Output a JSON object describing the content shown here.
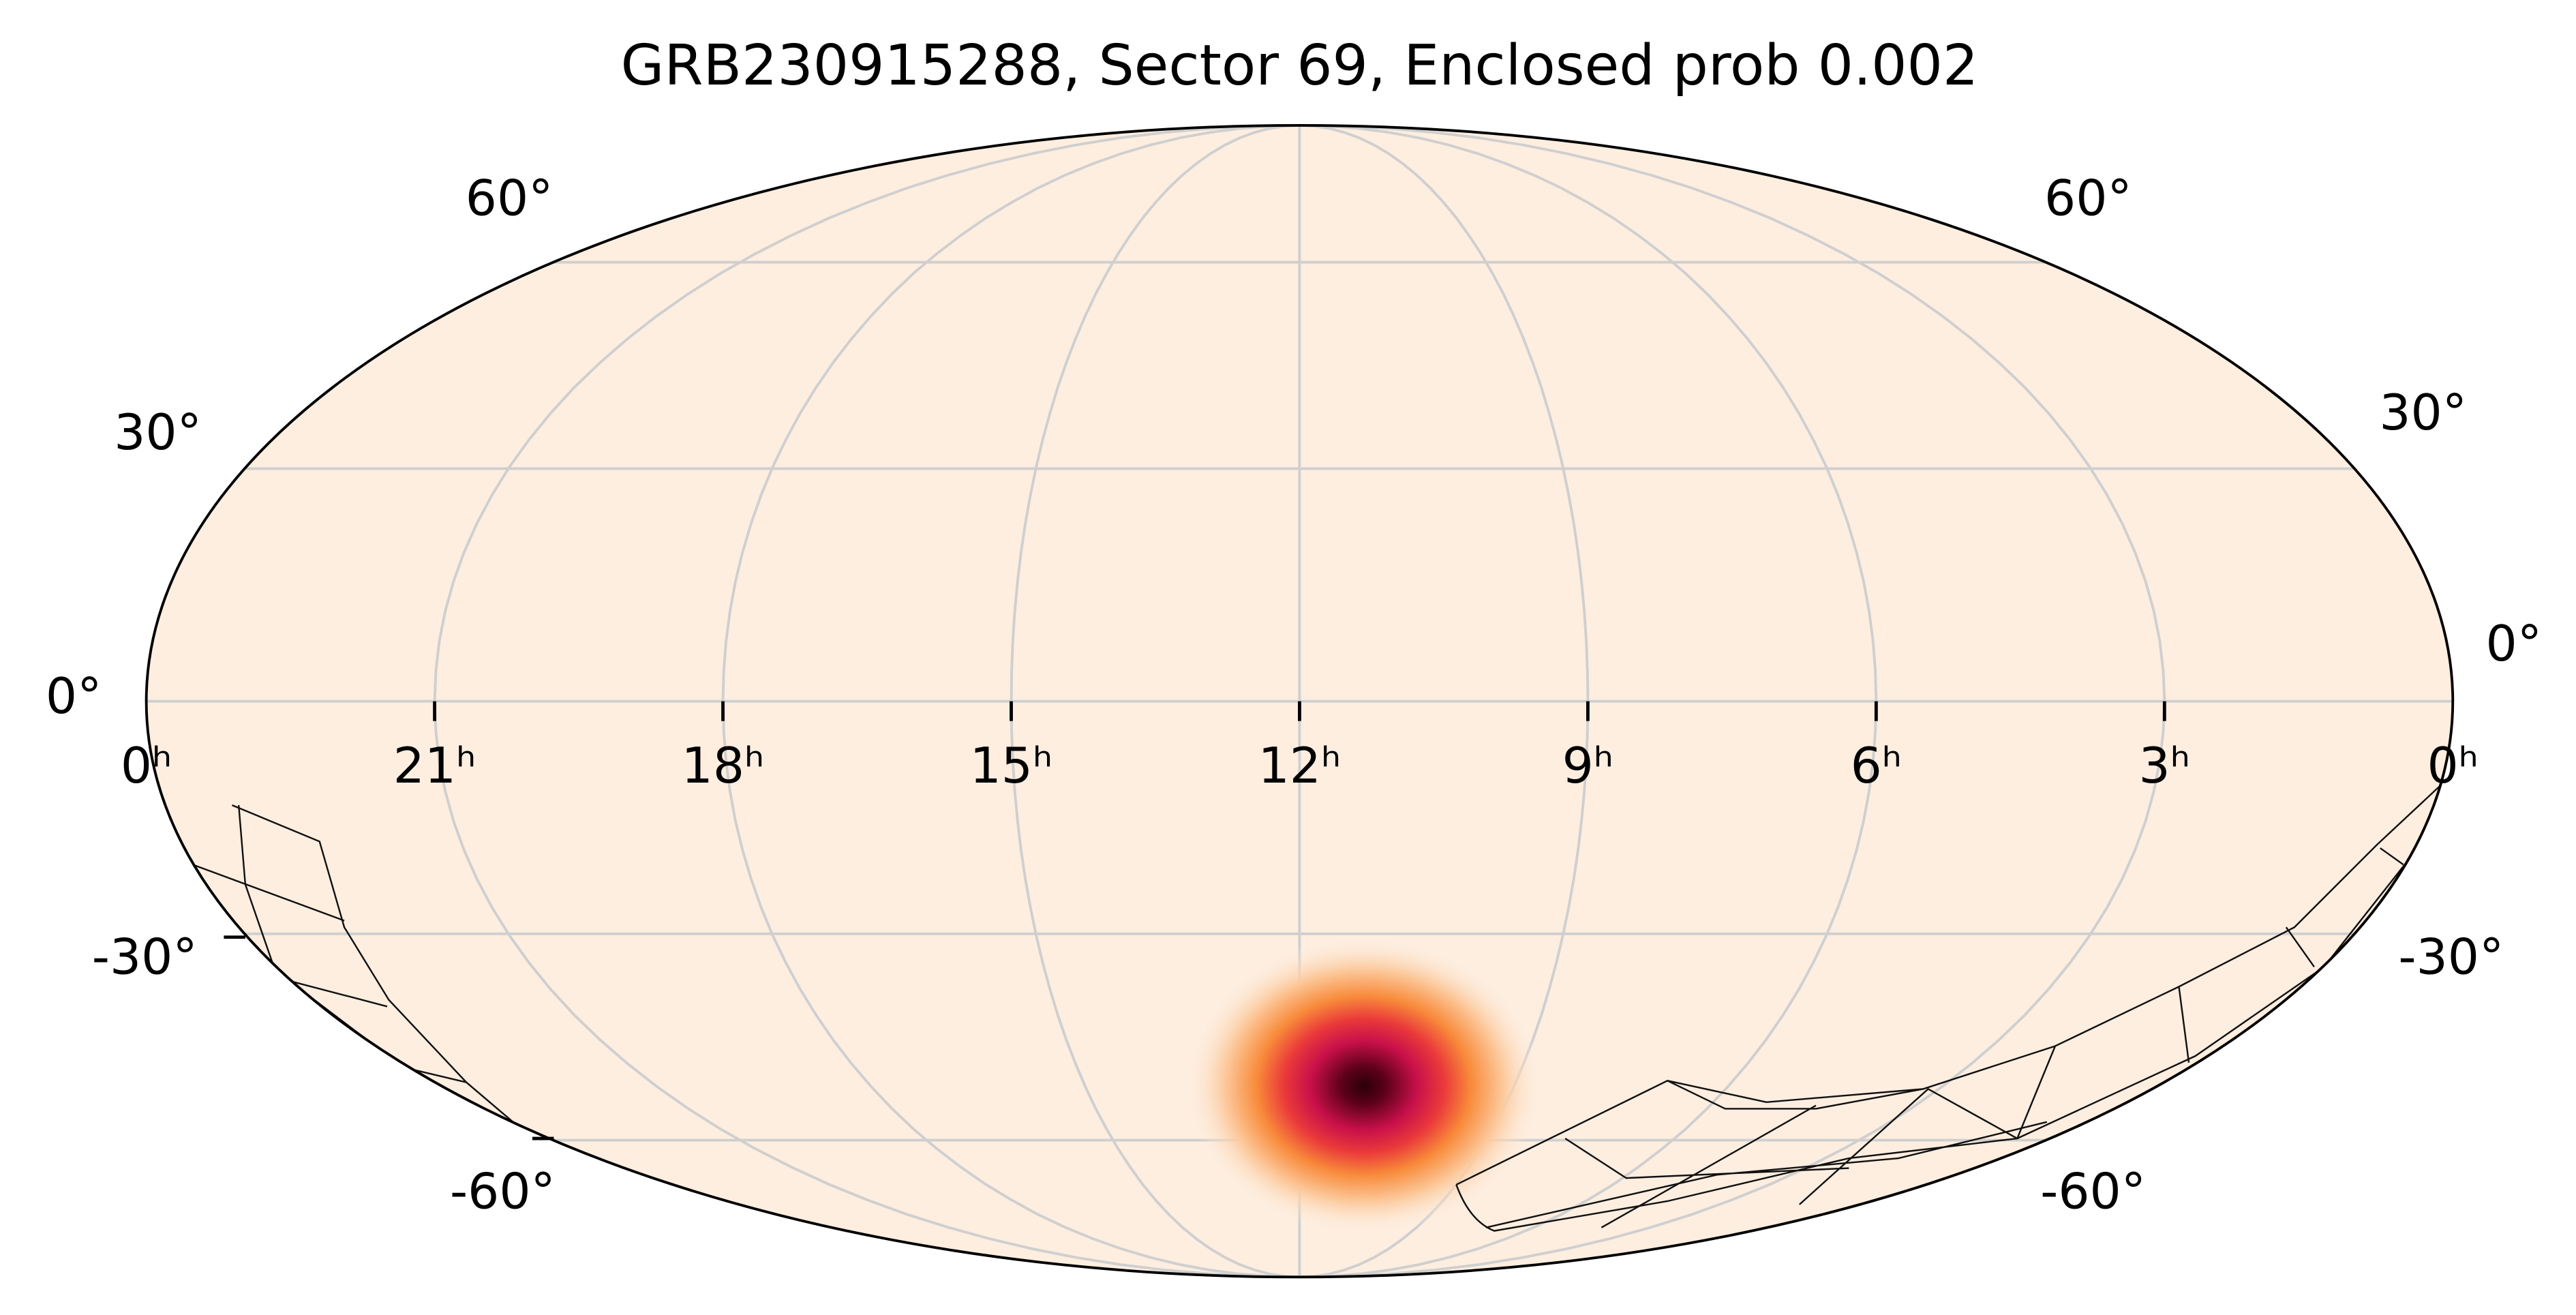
{
  "title": "GRB230915288, Sector 69, Enclosed prob 0.002",
  "ra_labels": [
    "0ʰ",
    "21ʰ",
    "18ʰ",
    "15ʰ",
    "12ʰ",
    "9ʰ",
    "6ʰ",
    "3ʰ",
    "0ʰ"
  ],
  "dec_labels_left": [
    "60°",
    "30°",
    "0°",
    "-30°",
    "-60°"
  ],
  "dec_labels_right": [
    "60°",
    "30°",
    "0°",
    "-30°",
    "-60°"
  ]
}
